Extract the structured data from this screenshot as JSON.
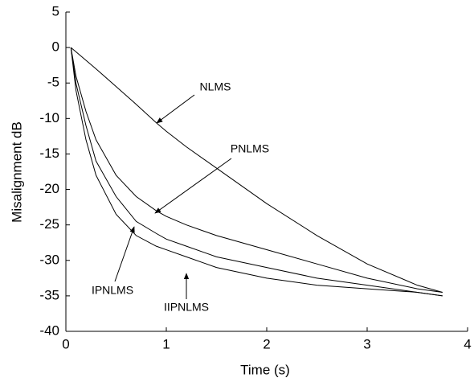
{
  "chart_data": {
    "type": "line",
    "xlabel": "Time (s)",
    "ylabel": "Misalignment dB",
    "x": [
      0.05,
      0.1,
      0.2,
      0.3,
      0.5,
      0.7,
      0.9,
      1.0,
      1.2,
      1.5,
      2,
      2.5,
      3,
      3.5,
      3.75
    ],
    "series": [
      {
        "name": "NLMS",
        "color": "#000000",
        "values": [
          0,
          -0.6,
          -1.8,
          -3,
          -5.5,
          -8,
          -10.6,
          -11.8,
          -14,
          -17,
          -22,
          -26.5,
          -30.5,
          -33.5,
          -34.5
        ]
      },
      {
        "name": "PNLMS",
        "color": "#000000",
        "values": [
          0,
          -4,
          -9,
          -13,
          -18,
          -21,
          -23,
          -23.8,
          -25,
          -26.5,
          -28.5,
          -30.5,
          -32.5,
          -34,
          -34.5
        ]
      },
      {
        "name": "IPNLMS",
        "color": "#000000",
        "values": [
          0,
          -5,
          -11,
          -16,
          -21,
          -24.5,
          -26.2,
          -27,
          -28,
          -29.5,
          -31,
          -32.5,
          -33.5,
          -34.5,
          -35
        ]
      },
      {
        "name": "IIPNLMS",
        "color": "#000000",
        "values": [
          0,
          -6,
          -13,
          -18,
          -23.5,
          -26.5,
          -28,
          -28.5,
          -29.5,
          -31,
          -32.5,
          -33.5,
          -34,
          -34.5,
          -35
        ]
      }
    ],
    "xlim": [
      0,
      4
    ],
    "xticks": [
      0,
      1,
      2,
      3,
      4
    ],
    "ylim": [
      -40,
      5
    ],
    "yticks": [
      -40,
      -35,
      -30,
      -25,
      -20,
      -15,
      -10,
      -5,
      0,
      5
    ],
    "grid": false
  }
}
